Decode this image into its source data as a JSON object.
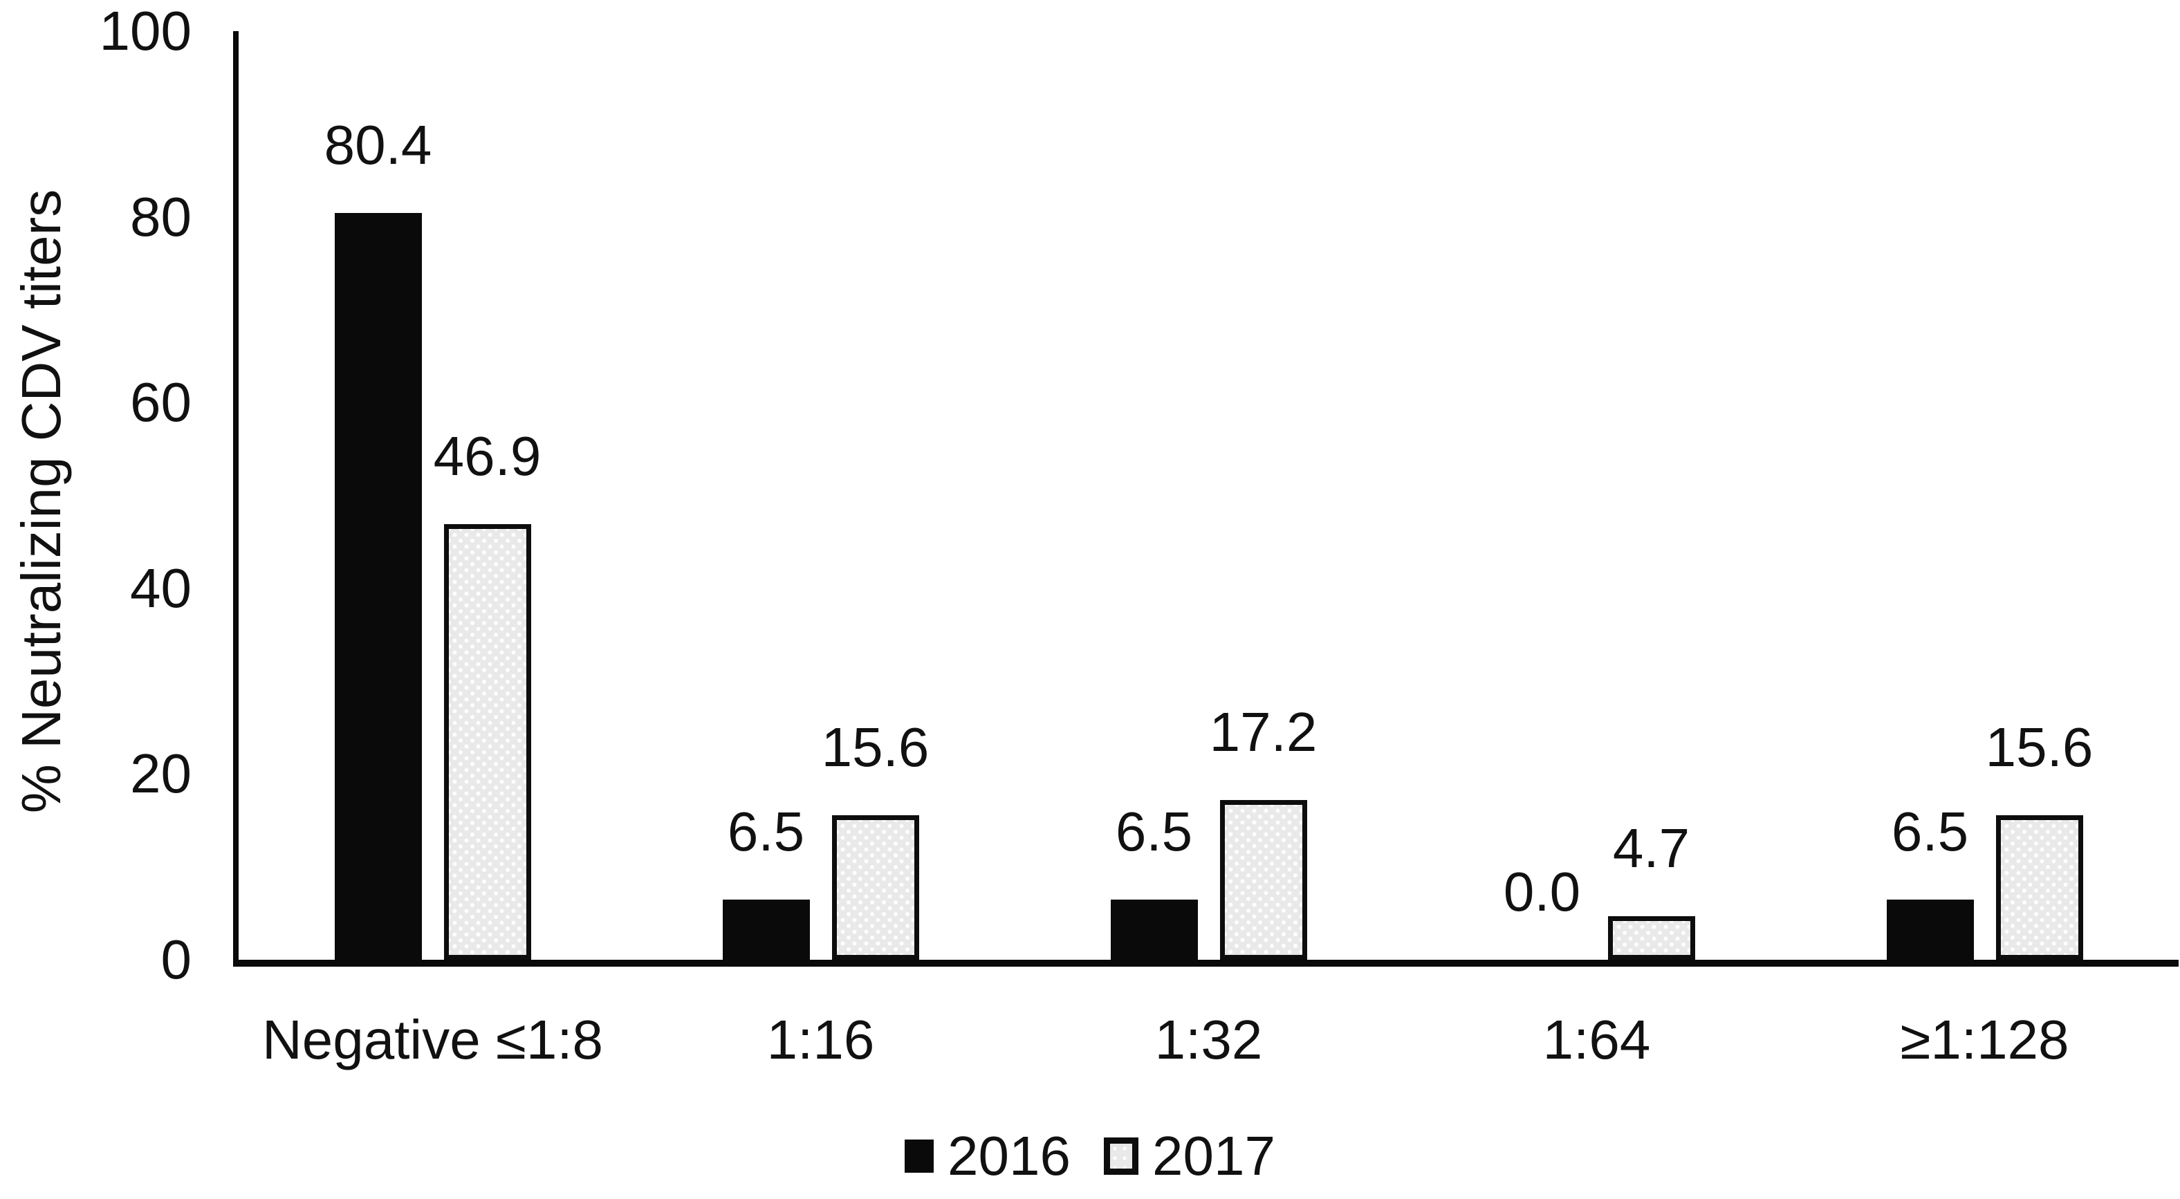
{
  "chart_data": {
    "type": "bar",
    "title": "",
    "xlabel": "",
    "ylabel": "% Neutralizing CDV titers",
    "ylim": [
      0,
      100
    ],
    "y_ticks": [
      0,
      20,
      40,
      60,
      80,
      100
    ],
    "grid": false,
    "legend_position": "bottom",
    "categories": [
      "Negative ≤1:8",
      "1:16",
      "1:32",
      "1:64",
      "≥1:128"
    ],
    "series": [
      {
        "name": "2016",
        "style": "solid-black",
        "color": "#0a0a0a",
        "values": [
          80.4,
          6.5,
          6.5,
          0.0,
          6.5
        ],
        "labels": [
          "80.4",
          "6.5",
          "6.5",
          "0.0",
          "6.5"
        ]
      },
      {
        "name": "2017",
        "style": "dotted-light",
        "color": "#e9e9e9",
        "border_color": "#0d0d0d",
        "values": [
          46.9,
          15.6,
          17.2,
          4.7,
          15.6
        ],
        "labels": [
          "46.9",
          "15.6",
          "17.2",
          "4.7",
          "15.6"
        ]
      }
    ]
  }
}
